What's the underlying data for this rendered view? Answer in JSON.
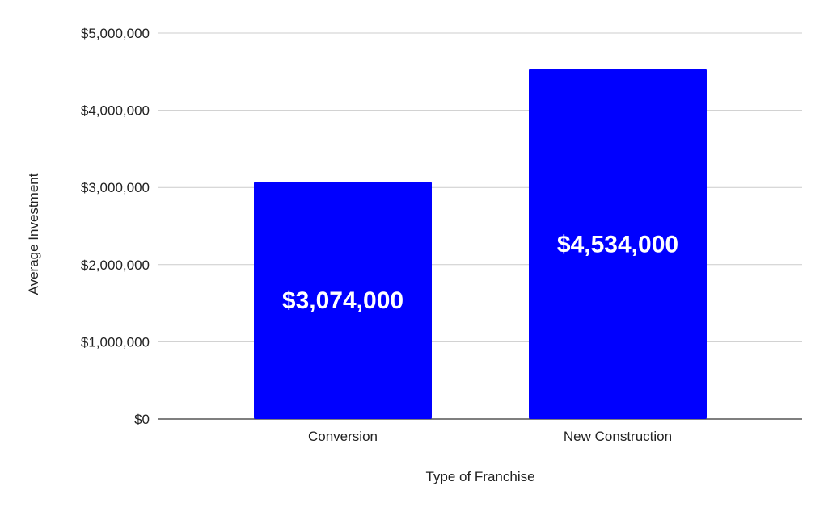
{
  "chart_data": {
    "type": "bar",
    "categories": [
      "Conversion",
      "New Construction"
    ],
    "values": [
      3074000,
      4534000
    ],
    "data_labels": [
      "$3,074,000",
      "$4,534,000"
    ],
    "title": "",
    "xlabel": "Type of Franchise",
    "ylabel": "Average Investment",
    "ylim": [
      0,
      5000000
    ],
    "yticks": [
      0,
      1000000,
      2000000,
      3000000,
      4000000,
      5000000
    ],
    "ytick_labels": [
      "$0",
      "$1,000,000",
      "$2,000,000",
      "$3,000,000",
      "$4,000,000",
      "$5,000,000"
    ],
    "grid": true,
    "legend": "none",
    "bar_color": "#0000ff"
  }
}
